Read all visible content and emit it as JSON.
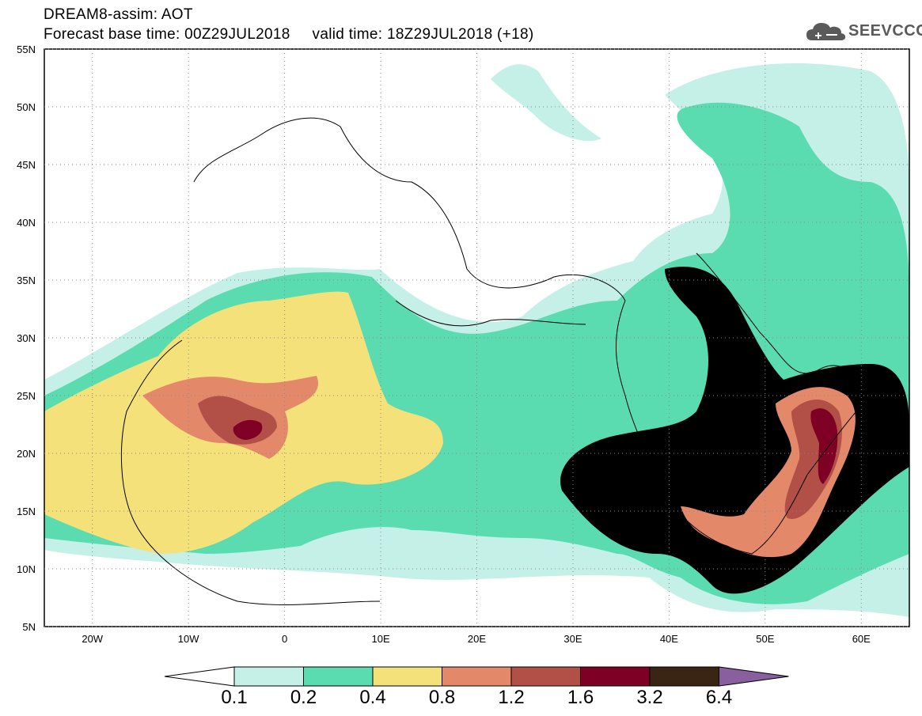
{
  "header": {
    "line1": "DREAM8-assim: AOT",
    "line2": "Forecast base time: 00Z29JUL2018     valid time: 18Z29JUL2018 (+18)"
  },
  "logo": {
    "text": "SEEVCCC",
    "icon": "cloud-icon"
  },
  "map": {
    "lon_range": [
      -25,
      65
    ],
    "lat_range": [
      5,
      55
    ],
    "x_ticks": [
      "20W",
      "10W",
      "0",
      "10E",
      "20E",
      "30E",
      "40E",
      "50E",
      "60E"
    ],
    "y_ticks": [
      "55N",
      "50N",
      "45N",
      "40N",
      "35N",
      "30N",
      "25N",
      "20N",
      "15N",
      "10N",
      "5N"
    ]
  },
  "colorbar": {
    "labels": [
      "0.1",
      "0.2",
      "0.4",
      "0.8",
      "1.2",
      "1.6",
      "3.2",
      "6.4"
    ],
    "colors": [
      "#c4f0e8",
      "#5bdcb0",
      "#f5e17a",
      "#e3896a",
      "#b25048",
      "#7e0025",
      "#3a2413",
      "#8a5fa0"
    ]
  }
}
